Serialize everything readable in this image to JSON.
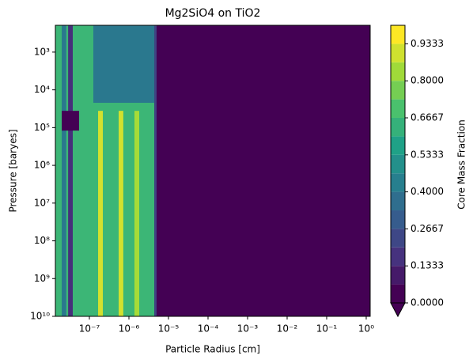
{
  "chart_data": {
    "type": "contour",
    "title": "Mg2SiO4 on TiO2",
    "xlabel": "Particle Radius [cm]",
    "ylabel": "Pressure [baryes]",
    "colorbar_label": "Core Mass Fraction",
    "colormap": "viridis",
    "xscale": "log",
    "yscale": "log",
    "y_inverted": true,
    "xlim": [
      1.38e-08,
      1.26
    ],
    "ylim": [
      195,
      10000000000.0
    ],
    "xticks": [
      {
        "value": 1e-07,
        "label": "10⁻⁷"
      },
      {
        "value": 1e-06,
        "label": "10⁻⁶"
      },
      {
        "value": 1e-05,
        "label": "10⁻⁵"
      },
      {
        "value": 0.0001,
        "label": "10⁻⁴"
      },
      {
        "value": 0.001,
        "label": "10⁻³"
      },
      {
        "value": 0.01,
        "label": "10⁻²"
      },
      {
        "value": 0.1,
        "label": "10⁻¹"
      },
      {
        "value": 1,
        "label": "10⁰"
      }
    ],
    "yticks": [
      {
        "value": 1000,
        "label": "10³"
      },
      {
        "value": 10000,
        "label": "10⁴"
      },
      {
        "value": 100000,
        "label": "10⁵"
      },
      {
        "value": 1000000,
        "label": "10⁶"
      },
      {
        "value": 10000000,
        "label": "10⁷"
      },
      {
        "value": 100000000,
        "label": "10⁸"
      },
      {
        "value": 1000000000,
        "label": "10⁹"
      },
      {
        "value": 10000000000,
        "label": "10¹⁰"
      }
    ],
    "clim": [
      0,
      1
    ],
    "levels": [
      0,
      0.0667,
      0.1333,
      0.2,
      0.2667,
      0.3333,
      0.4,
      0.4667,
      0.5333,
      0.6,
      0.6667,
      0.7333,
      0.8,
      0.8667,
      0.9333,
      1
    ],
    "extend": "min",
    "cticks": [
      {
        "value": 0,
        "label": "0.0000"
      },
      0.1333,
      0.2667,
      {
        "value": 0.4,
        "label": "0.4000"
      },
      0.5333,
      0.6667,
      {
        "value": 0.8,
        "label": "0.8000"
      },
      0.9333
    ],
    "regions": [
      {
        "x": [
          1.38e-08,
          1.26
        ],
        "y": [
          195,
          10000000000.0
        ],
        "value": 0
      },
      {
        "x": [
          1.38e-08,
          4.4e-06
        ],
        "y": [
          195,
          10000000000.0
        ],
        "value": 0.6667
      },
      {
        "x": [
          1.26e-07,
          4.4e-06
        ],
        "y": [
          195,
          22000
        ],
        "value": 0.4
      },
      {
        "x": [
          4.4e-06,
          5e-06
        ],
        "y": [
          195,
          10000000000.0
        ],
        "value": 0.2
      },
      {
        "x": [
          2e-08,
          2.6e-08
        ],
        "y": [
          195,
          10000000000.0
        ],
        "value": 0.4
      },
      {
        "x": [
          2.9e-08,
          3.8e-08
        ],
        "y": [
          195,
          10000000000.0
        ],
        "value": 0.1333
      },
      {
        "x": [
          1.66e-07,
          2.19e-07
        ],
        "y": [
          36000,
          10000000000.0
        ],
        "value": 0.9333
      },
      {
        "x": [
          5.5e-07,
          7.2e-07
        ],
        "y": [
          36000,
          10000000000.0
        ],
        "value": 0.9333
      },
      {
        "x": [
          1.38e-06,
          1.82e-06
        ],
        "y": [
          36000,
          10000000000.0
        ],
        "value": 0.8667
      },
      {
        "x": [
          2e-08,
          5.5e-08
        ],
        "y": [
          36000,
          120000
        ],
        "value": 0
      }
    ]
  }
}
